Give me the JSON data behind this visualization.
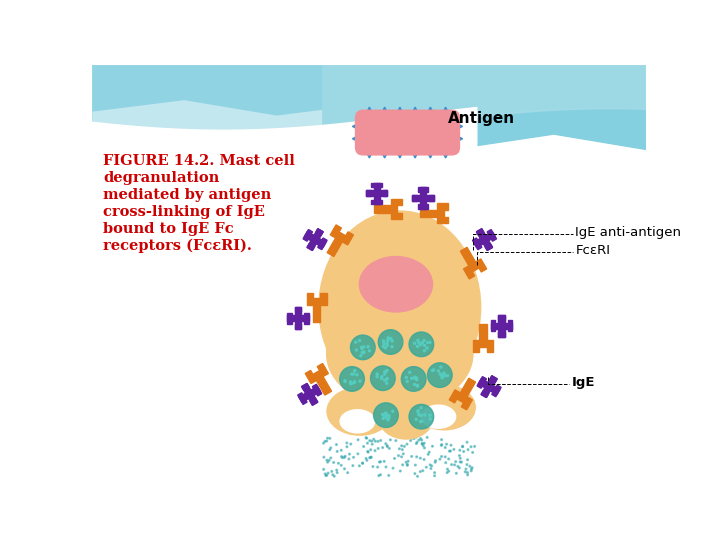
{
  "cell_body_color": "#f5c880",
  "cell_nucleus_color": "#f0959a",
  "antigen_color": "#f09098",
  "antigen_spike_color": "#3a8fcc",
  "receptor_color": "#e07818",
  "ige_color": "#6020a0",
  "granule_color": "#38a898",
  "granule_dot_color": "#55ccc0",
  "release_dot_color": "#38aab0",
  "label_antigen": "Antigen",
  "label_ige_anti": "IgE anti-antigen",
  "label_fce": "FcεRI",
  "label_ige": "IgE",
  "caption_line1": "FIGURE 14.2. Mast cell",
  "caption_line2": "degranulation",
  "caption_line3": "mediated by antigen",
  "caption_line4": "cross-linking of IgE",
  "caption_line5": "bound to IgE Fc",
  "caption_line6": "receptors (FcεRI).",
  "caption_color": "#cc0000",
  "caption_fontsize": 10.5,
  "label_fontsize": 9.5
}
